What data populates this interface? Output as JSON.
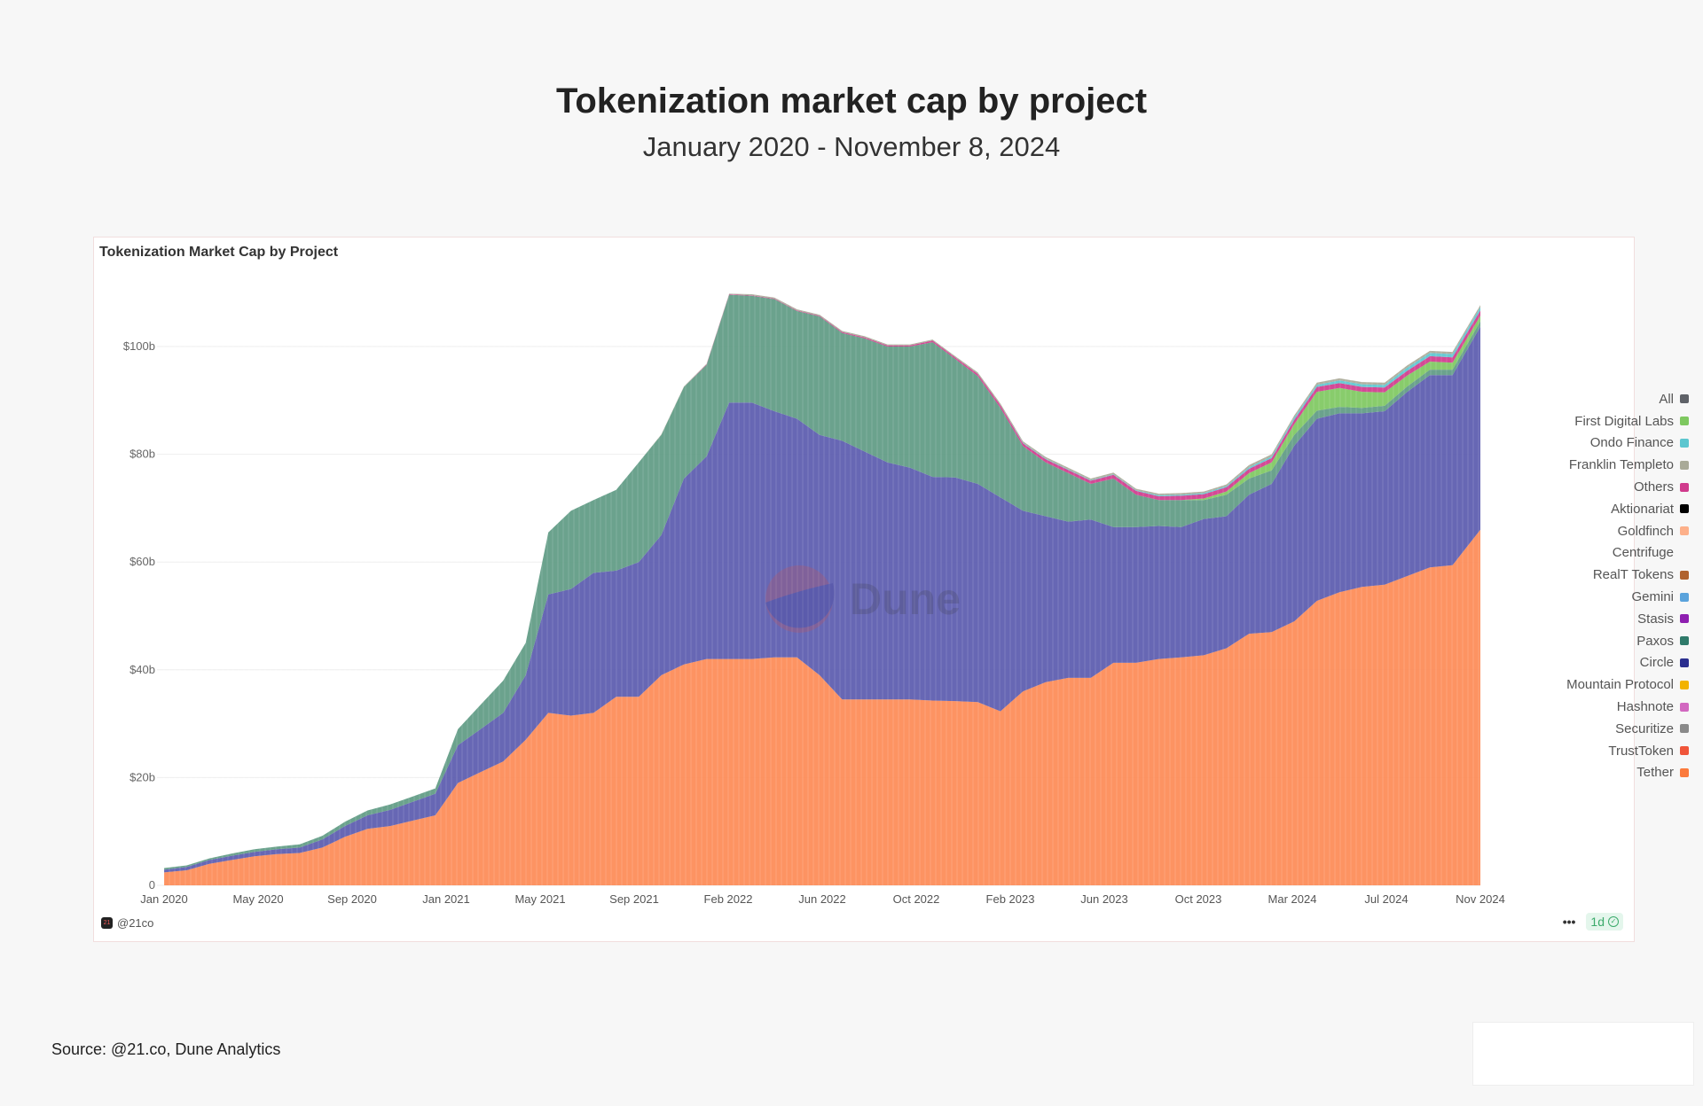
{
  "header": {
    "title": "Tokenization market cap by project",
    "subtitle": "January 2020 - November 8, 2024"
  },
  "card": {
    "title": "Tokenization Market Cap by Project",
    "author": "@21co",
    "refresh": "1d",
    "watermark": "Dune",
    "more_icon": "ellipsis-icon",
    "check_icon": "check-circle-icon"
  },
  "source": "Source: @21.co, Dune Analytics",
  "chart_data": {
    "type": "area",
    "stacked": true,
    "title": "Tokenization Market Cap by Project",
    "ylim": [
      0,
      110
    ],
    "yticks": [
      {
        "v": 0,
        "label": "0"
      },
      {
        "v": 20,
        "label": "$20b"
      },
      {
        "v": 40,
        "label": "$40b"
      },
      {
        "v": 60,
        "label": "$60b"
      },
      {
        "v": 80,
        "label": "$80b"
      },
      {
        "v": 100,
        "label": "$100b"
      }
    ],
    "xticks": [
      "Jan 2020",
      "May 2020",
      "Sep 2020",
      "Jan 2021",
      "May 2021",
      "Sep 2021",
      "Feb 2022",
      "Jun 2022",
      "Oct 2022",
      "Feb 2023",
      "Jun 2023",
      "Oct 2023",
      "Mar 2024",
      "Jul 2024",
      "Nov 2024"
    ],
    "x_start": "2020-01",
    "x_end": "2024-11-08",
    "grid": true,
    "legend_position": "right",
    "x": [
      "2020-01",
      "2020-02",
      "2020-03",
      "2020-04",
      "2020-05",
      "2020-06",
      "2020-07",
      "2020-08",
      "2020-09",
      "2020-10",
      "2020-11",
      "2020-12",
      "2021-01",
      "2021-02",
      "2021-03",
      "2021-04",
      "2021-05",
      "2021-06",
      "2021-07",
      "2021-08",
      "2021-09",
      "2021-10",
      "2021-11",
      "2021-12",
      "2022-01",
      "2022-02",
      "2022-03",
      "2022-04",
      "2022-05",
      "2022-06",
      "2022-07",
      "2022-08",
      "2022-09",
      "2022-10",
      "2022-11",
      "2022-12",
      "2023-01",
      "2023-02",
      "2023-03",
      "2023-04",
      "2023-05",
      "2023-06",
      "2023-07",
      "2023-08",
      "2023-09",
      "2023-10",
      "2023-11",
      "2023-12",
      "2024-01",
      "2024-02",
      "2024-03",
      "2024-04",
      "2024-05",
      "2024-06",
      "2024-07",
      "2024-08",
      "2024-09",
      "2024-10",
      "2024-11"
    ],
    "series": [
      {
        "name": "Tether",
        "color": "#fd8a55",
        "values": [
          2.4,
          2.8,
          4,
          4.7,
          5.4,
          5.8,
          6,
          7,
          9,
          10.5,
          11,
          12,
          13,
          19,
          21,
          23,
          27,
          32,
          31.5,
          32,
          35,
          35,
          39,
          41,
          42,
          42,
          42,
          42.3,
          42.3,
          39,
          34.5,
          34.5,
          34.5,
          34.5,
          34.3,
          34.2,
          34,
          32.3,
          36,
          37.7,
          38.5,
          38.5,
          41.3,
          41.3,
          42,
          42.3,
          42.7,
          44,
          46.7,
          47,
          49,
          52.8,
          54.4,
          55.4,
          55.8,
          57.4,
          59,
          59.4,
          66
        ]
      },
      {
        "name": "Circle",
        "color": "#5a5aae",
        "values": [
          0.5,
          0.6,
          0.7,
          0.8,
          0.8,
          0.9,
          1,
          1.5,
          2,
          2.5,
          3,
          3.5,
          4,
          7,
          8,
          9,
          12,
          22,
          23.5,
          26,
          23.4,
          25,
          26,
          34.5,
          37.6,
          47.6,
          47.6,
          45.7,
          44.3,
          44.6,
          48,
          46,
          44,
          43,
          41.5,
          41.5,
          40.5,
          39.7,
          33.5,
          30.8,
          29,
          29.4,
          25.2,
          25.2,
          24.7,
          24.2,
          25.3,
          24.5,
          25.8,
          27.5,
          32.6,
          33.8,
          33.2,
          32.2,
          32.2,
          34.2,
          35.7,
          35.3,
          37.7
        ]
      },
      {
        "name": "Paxos",
        "color": "#5e9a83",
        "values": [
          0.3,
          0.3,
          0.3,
          0.4,
          0.5,
          0.5,
          0.6,
          0.7,
          0.8,
          0.9,
          1,
          1,
          1,
          3,
          4.5,
          6,
          6,
          11.5,
          14.5,
          13.5,
          15,
          18.5,
          18.6,
          17,
          17,
          20,
          19.8,
          20.8,
          20,
          22,
          20,
          21,
          21.5,
          22.5,
          25,
          22,
          20,
          16.6,
          12,
          10,
          9,
          6.6,
          9,
          6,
          4.8,
          5,
          3.5,
          4,
          3,
          2.5,
          2,
          1.5,
          1.2,
          1,
          1,
          1,
          1,
          1,
          1
        ]
      },
      {
        "name": "First Digital Labs",
        "color": "#7ec860",
        "values": [
          0,
          0,
          0,
          0,
          0,
          0,
          0,
          0,
          0,
          0,
          0,
          0,
          0,
          0,
          0,
          0,
          0,
          0,
          0,
          0,
          0,
          0,
          0,
          0,
          0,
          0,
          0,
          0,
          0,
          0,
          0,
          0,
          0,
          0,
          0,
          0,
          0,
          0,
          0,
          0,
          0,
          0,
          0,
          0,
          0,
          0,
          0.3,
          0.6,
          1,
          1.5,
          2,
          3.5,
          3.5,
          3,
          2.5,
          2,
          1.5,
          1.3,
          1
        ]
      },
      {
        "name": "Others",
        "color": "#d03a8c",
        "values": [
          0,
          0,
          0,
          0,
          0,
          0,
          0,
          0,
          0,
          0,
          0,
          0,
          0,
          0,
          0,
          0,
          0,
          0,
          0,
          0,
          0,
          0,
          0,
          0,
          0.1,
          0.1,
          0.1,
          0.1,
          0.1,
          0.1,
          0.2,
          0.2,
          0.2,
          0.2,
          0.3,
          0.3,
          0.4,
          0.5,
          0.5,
          0.6,
          0.6,
          0.6,
          0.7,
          0.7,
          0.7,
          0.8,
          0.8,
          0.8,
          0.8,
          0.8,
          0.8,
          0.9,
          0.9,
          0.9,
          0.9,
          0.9,
          1,
          1,
          1
        ]
      },
      {
        "name": "Ondo Finance",
        "color": "#5cc6cf",
        "values": [
          0,
          0,
          0,
          0,
          0,
          0,
          0,
          0,
          0,
          0,
          0,
          0,
          0,
          0,
          0,
          0,
          0,
          0,
          0,
          0,
          0,
          0,
          0,
          0,
          0,
          0,
          0,
          0,
          0,
          0,
          0,
          0,
          0,
          0,
          0,
          0,
          0,
          0,
          0.1,
          0.1,
          0.1,
          0.1,
          0.1,
          0.1,
          0.2,
          0.2,
          0.2,
          0.2,
          0.3,
          0.3,
          0.4,
          0.4,
          0.5,
          0.5,
          0.5,
          0.6,
          0.6,
          0.6,
          0.6
        ]
      },
      {
        "name": "Franklin Templeto",
        "color": "#a9aa98",
        "values": [
          0,
          0,
          0,
          0,
          0,
          0,
          0,
          0,
          0,
          0,
          0,
          0,
          0,
          0,
          0,
          0,
          0,
          0,
          0,
          0,
          0,
          0,
          0.1,
          0.1,
          0.1,
          0.1,
          0.2,
          0.2,
          0.2,
          0.2,
          0.2,
          0.2,
          0.2,
          0.2,
          0.2,
          0.2,
          0.3,
          0.3,
          0.3,
          0.3,
          0.3,
          0.3,
          0.3,
          0.3,
          0.3,
          0.3,
          0.3,
          0.3,
          0.4,
          0.4,
          0.4,
          0.4,
          0.4,
          0.4,
          0.4,
          0.4,
          0.4,
          0.4,
          0.4
        ]
      }
    ],
    "legend": [
      {
        "name": "All",
        "color": "#5f6268"
      },
      {
        "name": "First Digital Labs",
        "color": "#7ec860"
      },
      {
        "name": "Ondo Finance",
        "color": "#5cc6cf"
      },
      {
        "name": "Franklin Templeto",
        "color": "#a9aa98"
      },
      {
        "name": "Others",
        "color": "#d03a8c"
      },
      {
        "name": "Aktionariat",
        "color": "#000000"
      },
      {
        "name": "Goldfinch",
        "color": "#fdb08a"
      },
      {
        "name": "Centrifuge",
        "color": ""
      },
      {
        "name": "RealT Tokens",
        "color": "#b0622e"
      },
      {
        "name": "Gemini",
        "color": "#5aa3dc"
      },
      {
        "name": "Stasis",
        "color": "#8e1fb0"
      },
      {
        "name": "Paxos",
        "color": "#2f7a6a"
      },
      {
        "name": "Circle",
        "color": "#2b2f8f"
      },
      {
        "name": "Mountain Protocol",
        "color": "#f2b300"
      },
      {
        "name": "Hashnote",
        "color": "#d268c0"
      },
      {
        "name": "Securitize",
        "color": "#8a8a8a"
      },
      {
        "name": "TrustToken",
        "color": "#f0553a"
      },
      {
        "name": "Tether",
        "color": "#fb7a3c"
      }
    ]
  }
}
